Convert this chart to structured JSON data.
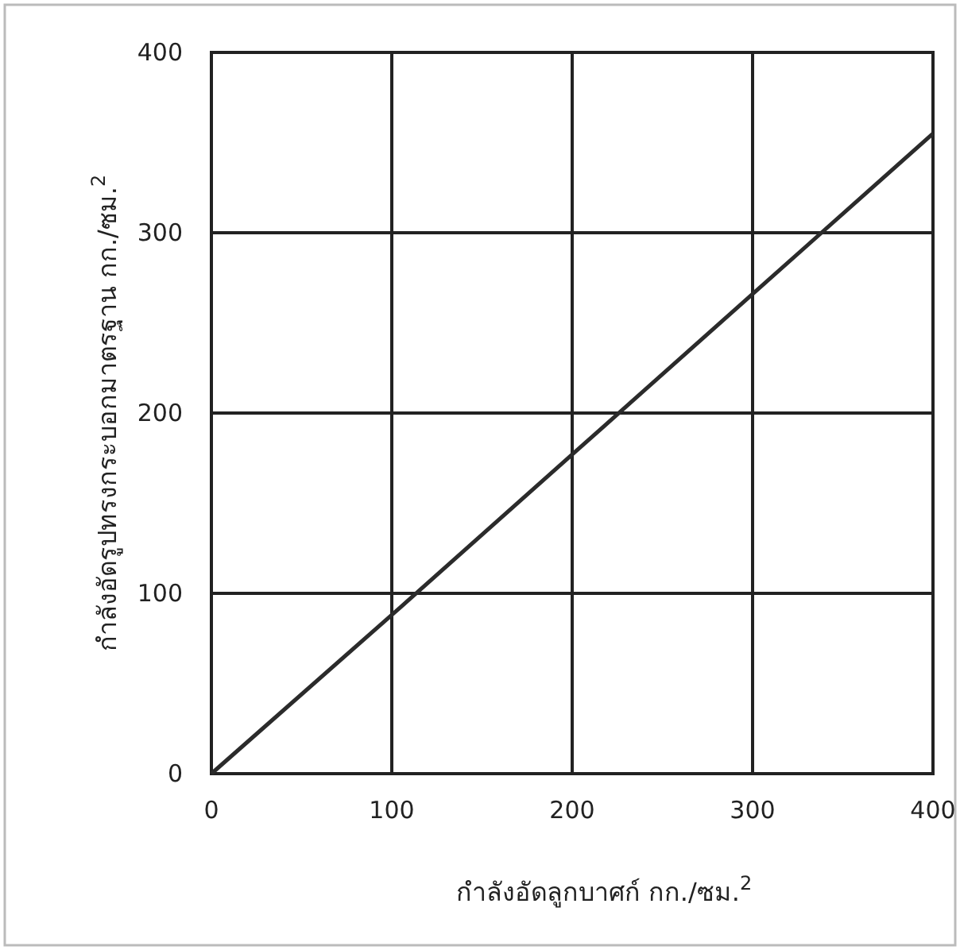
{
  "chart_data": {
    "type": "line",
    "xlabel": "กำลังอัดลูกบาศก์ กก./ซม.$^{2}$",
    "ylabel": "กำลังอัดรูปทรงกระบอกมาตรฐาน กก./ซม.$^{2}$",
    "x": [
      0,
      100,
      200,
      300,
      400
    ],
    "series": [
      {
        "color": "#2b2b2b",
        "values": [
          0,
          88,
          177,
          266,
          355
        ]
      }
    ],
    "xlim": [
      0,
      400
    ],
    "ylim": [
      0,
      400
    ],
    "xticks": [
      0,
      100,
      200,
      300,
      400
    ],
    "yticks": [
      0,
      100,
      200,
      300,
      400
    ],
    "grid": true,
    "marker": "none",
    "line_style": "solid"
  }
}
